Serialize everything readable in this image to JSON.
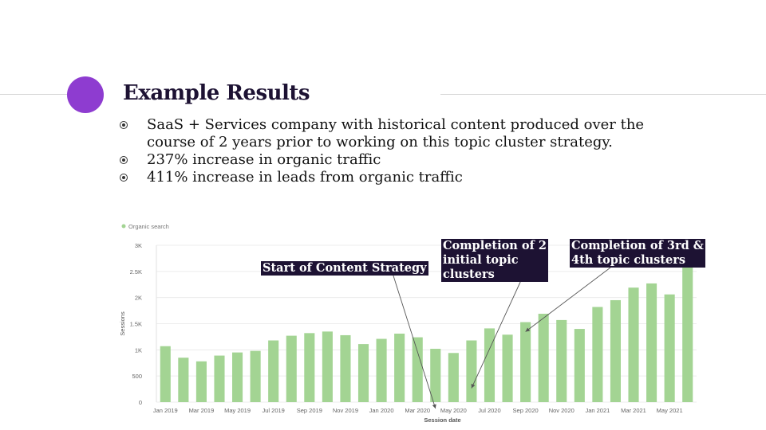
{
  "slide": {
    "title": "Example Results",
    "bullets": [
      "SaaS + Services company with historical content produced over the course of 2 years prior to working on this topic cluster strategy.",
      "237% increase in organic traffic",
      "411% increase in leads from organic traffic"
    ],
    "accent_color": "#8e3cd0"
  },
  "chart_data": {
    "type": "bar",
    "legend": {
      "entries": [
        "Organic search"
      ],
      "placement": "top-left"
    },
    "xlabel": "Session date",
    "ylabel": "Sessions",
    "ylim": [
      0,
      3000
    ],
    "yticks": [
      0,
      500,
      1000,
      1500,
      2000,
      2500,
      3000
    ],
    "ytick_labels": [
      "0",
      "500",
      "1K",
      "1.5K",
      "2K",
      "2.5K",
      "3K"
    ],
    "grid": true,
    "bar_color": "#a3d493",
    "categories": [
      "Jan 2019",
      "Feb 2019",
      "Mar 2019",
      "Apr 2019",
      "May 2019",
      "Jun 2019",
      "Jul 2019",
      "Aug 2019",
      "Sep 2019",
      "Oct 2019",
      "Nov 2019",
      "Dec 2019",
      "Jan 2020",
      "Feb 2020",
      "Mar 2020",
      "Apr 2020",
      "May 2020",
      "Jun 2020",
      "Jul 2020",
      "Aug 2020",
      "Sep 2020",
      "Oct 2020",
      "Nov 2020",
      "Dec 2020",
      "Jan 2021",
      "Feb 2021",
      "Mar 2021",
      "Apr 2021",
      "May 2021",
      "Jun 2021"
    ],
    "xtick_labels": [
      "Jan 2019",
      "Mar 2019",
      "May 2019",
      "Jul 2019",
      "Sep 2019",
      "Nov 2019",
      "Jan 2020",
      "Mar 2020",
      "May 2020",
      "Jul 2020",
      "Sep 2020",
      "Nov 2020",
      "Jan 2021",
      "Mar 2021",
      "May 2021",
      "..."
    ],
    "series": [
      {
        "name": "Organic search",
        "values": [
          1070,
          850,
          780,
          890,
          950,
          980,
          1180,
          1270,
          1320,
          1350,
          1280,
          1110,
          1210,
          1310,
          1240,
          1020,
          940,
          1180,
          1410,
          1290,
          1530,
          1690,
          1570,
          1400,
          1820,
          1950,
          2190,
          2270,
          2060,
          2630
        ]
      }
    ],
    "annotations": [
      {
        "text": "Start of Content Strategy",
        "category": "Apr 2020"
      },
      {
        "text": "Completion of 2\ninitial topic\nclusters",
        "category": "Jun 2020"
      },
      {
        "text": "Completion of 3rd &\n4th topic clusters",
        "category": "Sep 2020"
      }
    ]
  }
}
